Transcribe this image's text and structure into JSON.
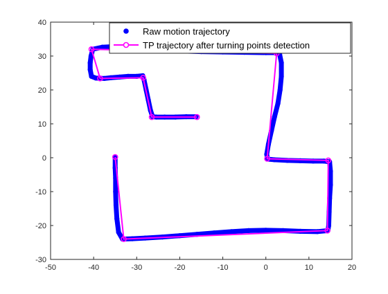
{
  "chart_data": {
    "type": "scatter",
    "title": "",
    "xlabel": "",
    "ylabel": "",
    "xlim": [
      -50,
      20
    ],
    "ylim": [
      -30,
      40
    ],
    "xticks": [
      -50,
      -40,
      -30,
      -20,
      -10,
      0,
      10,
      20
    ],
    "yticks": [
      -30,
      -20,
      -10,
      0,
      10,
      20,
      30,
      40
    ],
    "grid": false,
    "legend_position": "top-right",
    "series": [
      {
        "name": "Raw motion trajectory",
        "kind": "markers",
        "color": "#0000ff",
        "points": [
          [
            -16.2,
            12.1
          ],
          [
            -18.5,
            12.1
          ],
          [
            -21,
            12.0
          ],
          [
            -23.5,
            12.0
          ],
          [
            -25.5,
            12.0
          ],
          [
            -26.3,
            12.1
          ],
          [
            -26.8,
            14
          ],
          [
            -27.3,
            17
          ],
          [
            -27.8,
            20
          ],
          [
            -28.3,
            23
          ],
          [
            -28.6,
            24.2
          ],
          [
            -30,
            24
          ],
          [
            -32,
            24
          ],
          [
            -34,
            23.8
          ],
          [
            -36,
            23.6
          ],
          [
            -37.5,
            23.4
          ],
          [
            -39.5,
            23.5
          ],
          [
            -40.5,
            24
          ],
          [
            -40.8,
            26
          ],
          [
            -40.8,
            28
          ],
          [
            -40.6,
            30
          ],
          [
            -40.2,
            32
          ],
          [
            -38,
            32.6
          ],
          [
            -35,
            32.8
          ],
          [
            -30,
            32.3
          ],
          [
            -25,
            31.8
          ],
          [
            -20,
            31.5
          ],
          [
            -15,
            31.3
          ],
          [
            -10,
            31.2
          ],
          [
            -5,
            31.1
          ],
          [
            0,
            31.0
          ],
          [
            2.5,
            31.0
          ],
          [
            3.2,
            30.5
          ],
          [
            3.6,
            28
          ],
          [
            3.6,
            24
          ],
          [
            3.3,
            20
          ],
          [
            2.8,
            16
          ],
          [
            2.0,
            12
          ],
          [
            1.3,
            8
          ],
          [
            0.6,
            4
          ],
          [
            0.2,
            1
          ],
          [
            0.4,
            -0.4
          ],
          [
            2,
            -0.6
          ],
          [
            5,
            -0.8
          ],
          [
            8,
            -0.9
          ],
          [
            11,
            -1.0
          ],
          [
            13.5,
            -1.0
          ],
          [
            14.8,
            -1.2
          ],
          [
            15.0,
            -4
          ],
          [
            15.0,
            -8
          ],
          [
            14.8,
            -12
          ],
          [
            14.7,
            -16
          ],
          [
            14.6,
            -20
          ],
          [
            14.4,
            -21.5
          ],
          [
            12,
            -21.8
          ],
          [
            8,
            -21.7
          ],
          [
            4,
            -21.5
          ],
          [
            0,
            -21.4
          ],
          [
            -4,
            -21.5
          ],
          [
            -8,
            -21.8
          ],
          [
            -12,
            -22.2
          ],
          [
            -16,
            -22.6
          ],
          [
            -20,
            -23.0
          ],
          [
            -24,
            -23.4
          ],
          [
            -28,
            -23.7
          ],
          [
            -31,
            -23.9
          ],
          [
            -33.3,
            -24.0
          ],
          [
            -34.2,
            -22
          ],
          [
            -34.6,
            -18
          ],
          [
            -34.8,
            -14
          ],
          [
            -34.9,
            -10
          ],
          [
            -34.9,
            -6
          ],
          [
            -35.0,
            -3
          ],
          [
            -35.0,
            0.0
          ]
        ]
      },
      {
        "name": "TP trajectory after turning points detection",
        "kind": "line-markers",
        "color": "#ff00ff",
        "points": [
          [
            -16.0,
            12.0
          ],
          [
            -26.5,
            12.0
          ],
          [
            -28.5,
            23.6
          ],
          [
            -38.5,
            23.4
          ],
          [
            -40.5,
            32.0
          ],
          [
            2.5,
            30.8
          ],
          [
            0.3,
            -0.3
          ],
          [
            14.5,
            -0.8
          ],
          [
            14.3,
            -21.5
          ],
          [
            -33.0,
            -24.0
          ],
          [
            -35.0,
            0.2
          ]
        ]
      }
    ]
  }
}
